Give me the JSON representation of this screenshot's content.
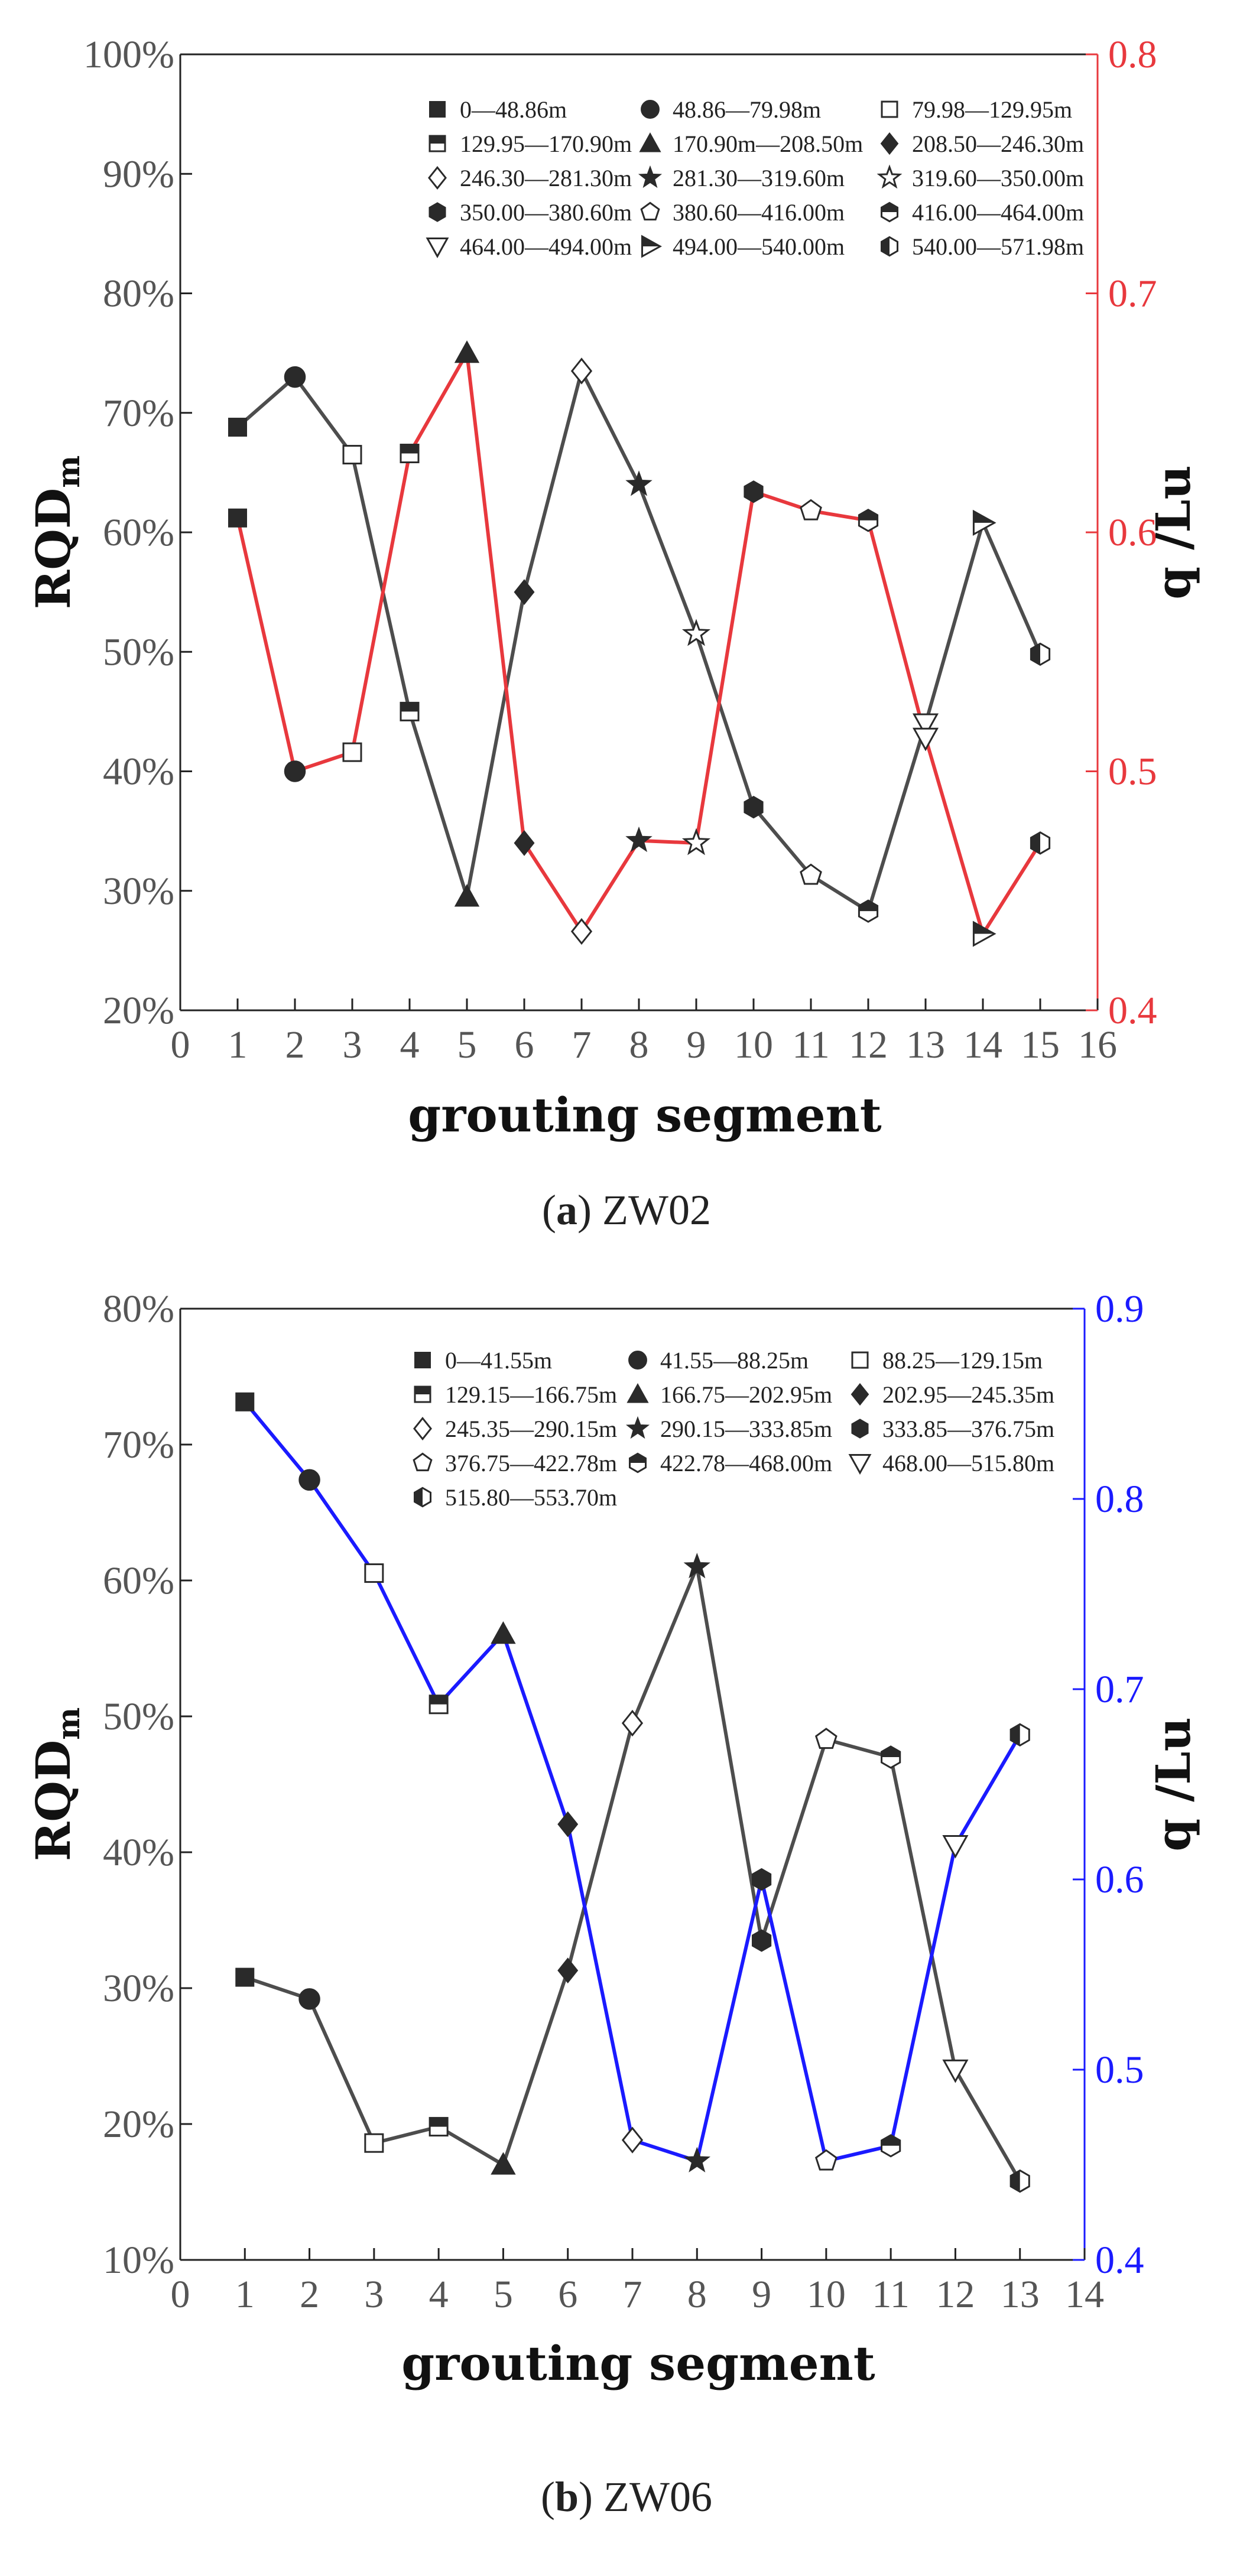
{
  "chart_data": [
    {
      "type": "line",
      "title": "",
      "caption": {
        "open": "(",
        "letter": "a",
        "rest": ") ZW02"
      },
      "xlabel": "grouting segment",
      "ylabel": {
        "main": "RQD",
        "sub": "m"
      },
      "y2label": "q /Lu",
      "xlim": [
        0,
        16
      ],
      "ylim": [
        20,
        100
      ],
      "y2lim": [
        0.4,
        0.8
      ],
      "x_ticks": [
        "0",
        "1",
        "2",
        "3",
        "4",
        "5",
        "6",
        "7",
        "8",
        "9",
        "10",
        "11",
        "12",
        "13",
        "14",
        "15",
        "16"
      ],
      "y_ticks": [
        "20%",
        "30%",
        "40%",
        "50%",
        "60%",
        "70%",
        "80%",
        "90%",
        "100%"
      ],
      "y2_ticks": [
        "0.4",
        "0.5",
        "0.6",
        "0.7",
        "0.8"
      ],
      "right_axis_color": "#e8383d",
      "legend": [
        {
          "label": "0—48.86m",
          "marker": "square-filled"
        },
        {
          "label": "48.86—79.98m",
          "marker": "circle-filled"
        },
        {
          "label": "79.98—129.95m",
          "marker": "square-open"
        },
        {
          "label": "129.95—170.90m",
          "marker": "square-half"
        },
        {
          "label": "170.90m—208.50m",
          "marker": "triangle-up-filled"
        },
        {
          "label": "208.50—246.30m",
          "marker": "diamond-filled"
        },
        {
          "label": "246.30—281.30m",
          "marker": "diamond-open"
        },
        {
          "label": "281.30—319.60m",
          "marker": "star-filled"
        },
        {
          "label": "319.60—350.00m",
          "marker": "star-open"
        },
        {
          "label": "350.00—380.60m",
          "marker": "hexagon-filled"
        },
        {
          "label": "380.60—416.00m",
          "marker": "pentagon-open"
        },
        {
          "label": "416.00—464.00m",
          "marker": "hexagon-half"
        },
        {
          "label": "464.00—494.00m",
          "marker": "triangle-down-open"
        },
        {
          "label": "494.00—540.00m",
          "marker": "triangle-right-half"
        },
        {
          "label": "540.00—571.98m",
          "marker": "hexagon-vhalf"
        }
      ],
      "series": [
        {
          "name": "RQDm",
          "axis": "left",
          "color": "#4d4d4d",
          "x": [
            1,
            2,
            3,
            4,
            5,
            6,
            7,
            8,
            9,
            10,
            11,
            12,
            13,
            14,
            15
          ],
          "values": [
            68.8,
            73,
            66.5,
            45,
            29.5,
            55,
            73.5,
            64,
            51.5,
            37,
            31.3,
            28.3,
            44,
            60.8,
            49.8
          ]
        },
        {
          "name": "q",
          "axis": "right",
          "color": "#e8383d",
          "x": [
            1,
            2,
            3,
            4,
            5,
            6,
            7,
            8,
            9,
            10,
            11,
            12,
            13,
            14,
            15
          ],
          "values": [
            0.606,
            0.5,
            0.508,
            0.633,
            0.675,
            0.47,
            0.433,
            0.471,
            0.47,
            0.617,
            0.609,
            0.605,
            0.514,
            0.432,
            0.47
          ]
        }
      ]
    },
    {
      "type": "line",
      "title": "",
      "caption": {
        "open": "(",
        "letter": "b",
        "rest": ") ZW06"
      },
      "xlabel": "grouting segment",
      "ylabel": {
        "main": "RQD",
        "sub": "m"
      },
      "y2label": "q /Lu",
      "xlim": [
        0,
        14
      ],
      "ylim": [
        10,
        80
      ],
      "y2lim": [
        0.4,
        0.9
      ],
      "x_ticks": [
        "0",
        "1",
        "2",
        "3",
        "4",
        "5",
        "6",
        "7",
        "8",
        "9",
        "10",
        "11",
        "12",
        "13",
        "14"
      ],
      "y_ticks": [
        "10%",
        "20%",
        "30%",
        "40%",
        "50%",
        "60%",
        "70%",
        "80%"
      ],
      "y2_ticks": [
        "0.4",
        "0.5",
        "0.6",
        "0.7",
        "0.8",
        "0.9"
      ],
      "right_axis_color": "#1a1aff",
      "legend": [
        {
          "label": "0—41.55m",
          "marker": "square-filled"
        },
        {
          "label": "41.55—88.25m",
          "marker": "circle-filled"
        },
        {
          "label": "88.25—129.15m",
          "marker": "square-open"
        },
        {
          "label": "129.15—166.75m",
          "marker": "square-half"
        },
        {
          "label": "166.75—202.95m",
          "marker": "triangle-up-filled"
        },
        {
          "label": "202.95—245.35m",
          "marker": "diamond-filled"
        },
        {
          "label": "245.35—290.15m",
          "marker": "diamond-open"
        },
        {
          "label": "290.15—333.85m",
          "marker": "star-filled"
        },
        {
          "label": "333.85—376.75m",
          "marker": "hexagon-filled"
        },
        {
          "label": "376.75—422.78m",
          "marker": "pentagon-open"
        },
        {
          "label": "422.78—468.00m",
          "marker": "hexagon-half"
        },
        {
          "label": "468.00—515.80m",
          "marker": "triangle-down-open"
        },
        {
          "label": "515.80—553.70m",
          "marker": "hexagon-vhalf"
        }
      ],
      "series": [
        {
          "name": "RQDm",
          "axis": "left",
          "color": "#4d4d4d",
          "x": [
            1,
            2,
            3,
            4,
            5,
            6,
            7,
            8,
            9,
            10,
            11,
            12,
            13
          ],
          "values": [
            30.8,
            29.2,
            18.6,
            19.8,
            17,
            31.3,
            49.5,
            61,
            33.5,
            48.3,
            47,
            24,
            15.8
          ]
        },
        {
          "name": "q",
          "axis": "right",
          "color": "#1a1aff",
          "x": [
            1,
            2,
            3,
            4,
            5,
            6,
            7,
            8,
            9,
            10,
            11,
            12,
            13
          ],
          "values": [
            0.851,
            0.81,
            0.761,
            0.692,
            0.729,
            0.629,
            0.463,
            0.452,
            0.6,
            0.452,
            0.46,
            0.618,
            0.676
          ]
        }
      ]
    }
  ]
}
